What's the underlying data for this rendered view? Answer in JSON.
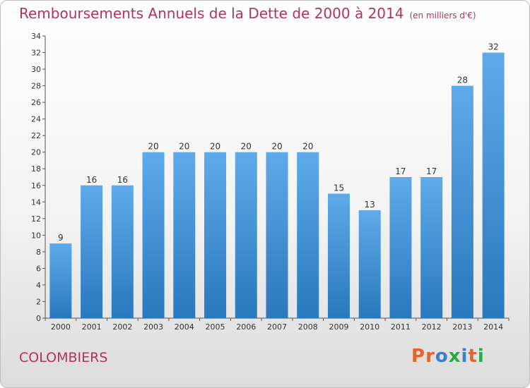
{
  "header": {
    "title": "Remboursements Annuels de la Dette de 2000 à 2014",
    "subtitle": "(en milliers d'€)"
  },
  "footer": {
    "place": "COLOMBIERS",
    "brand": "Proxiti",
    "brand_colors": [
      "#e8622a",
      "#e8622a",
      "#3a7fd5",
      "#2aa84a",
      "#3a7fd5",
      "#e8622a",
      "#2aa84a"
    ]
  },
  "chart_data": {
    "type": "bar",
    "title": "Remboursements Annuels de la Dette de 2000 à 2014",
    "subtitle": "(en milliers d'€)",
    "xlabel": "",
    "ylabel": "",
    "categories": [
      "2000",
      "2001",
      "2002",
      "2003",
      "2004",
      "2005",
      "2006",
      "2007",
      "2008",
      "2009",
      "2010",
      "2011",
      "2012",
      "2013",
      "2014"
    ],
    "values": [
      9,
      16,
      16,
      20,
      20,
      20,
      20,
      20,
      20,
      15,
      13,
      17,
      17,
      28,
      32
    ],
    "ylim": [
      0,
      34
    ],
    "yticks": [
      0,
      2,
      4,
      6,
      8,
      10,
      12,
      14,
      16,
      18,
      20,
      22,
      24,
      26,
      28,
      30,
      32,
      34
    ],
    "grid": false,
    "bar_color_top": "#5eaaea",
    "bar_color_bottom": "#2a78bd"
  }
}
